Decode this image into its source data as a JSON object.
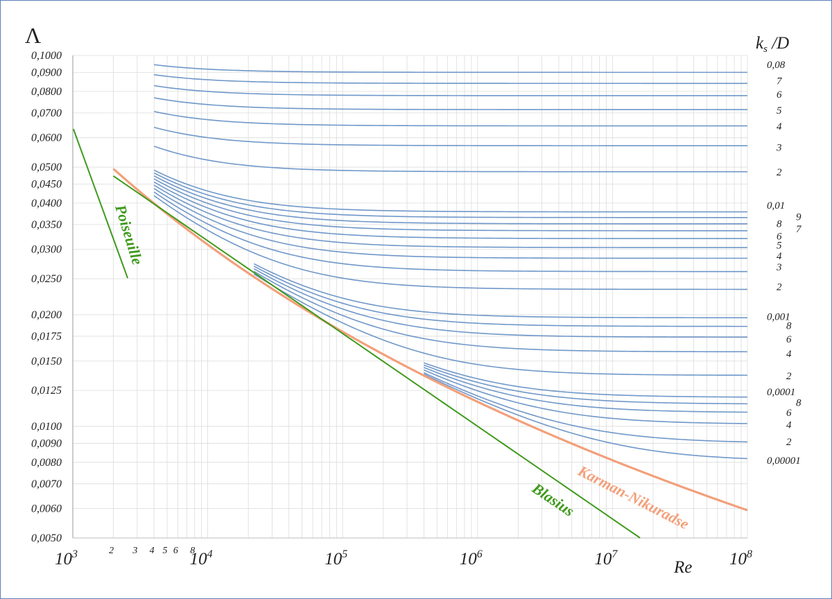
{
  "chart_data": {
    "type": "line",
    "x_scale": "log",
    "y_scale": "log",
    "xlim": [
      1000,
      100000000
    ],
    "ylim": [
      0.005,
      0.1
    ],
    "grid": true,
    "y_axis_title": "Λ",
    "x_axis_title": "Re",
    "ks_title_main": "k",
    "ks_title_sub": "s",
    "ks_title_rest": " /D",
    "y_ticks": [
      {
        "value": 0.1,
        "label": "0,1000"
      },
      {
        "value": 0.09,
        "label": "0,0900"
      },
      {
        "value": 0.08,
        "label": "0,0800"
      },
      {
        "value": 0.07,
        "label": "0,0700"
      },
      {
        "value": 0.06,
        "label": "0,0600"
      },
      {
        "value": 0.05,
        "label": "0,0500"
      },
      {
        "value": 0.045,
        "label": "0,0450"
      },
      {
        "value": 0.04,
        "label": "0,0400"
      },
      {
        "value": 0.035,
        "label": "0,0350"
      },
      {
        "value": 0.03,
        "label": "0,0300"
      },
      {
        "value": 0.025,
        "label": "0,0250"
      },
      {
        "value": 0.02,
        "label": "0,0200"
      },
      {
        "value": 0.0175,
        "label": "0,0175"
      },
      {
        "value": 0.015,
        "label": "0,0150"
      },
      {
        "value": 0.0125,
        "label": "0,0125"
      },
      {
        "value": 0.01,
        "label": "0,0100"
      },
      {
        "value": 0.009,
        "label": "0,0090"
      },
      {
        "value": 0.008,
        "label": "0,0080"
      },
      {
        "value": 0.007,
        "label": "0,0070"
      },
      {
        "value": 0.006,
        "label": "0,0060"
      },
      {
        "value": 0.005,
        "label": "0,0050"
      }
    ],
    "x_decades": [
      {
        "value": 1000,
        "base": "10",
        "exp": "3"
      },
      {
        "value": 10000,
        "base": "10",
        "exp": "4"
      },
      {
        "value": 100000,
        "base": "10",
        "exp": "5"
      },
      {
        "value": 1000000,
        "base": "10",
        "exp": "6"
      },
      {
        "value": 10000000,
        "base": "10",
        "exp": "7"
      },
      {
        "value": 100000000,
        "base": "10",
        "exp": "8"
      }
    ],
    "x_minor_labels": [
      {
        "value": 2000,
        "label": "2"
      },
      {
        "value": 3000,
        "label": "3"
      },
      {
        "value": 4000,
        "label": "4"
      },
      {
        "value": 5000,
        "label": "5"
      },
      {
        "value": 6000,
        "label": "6"
      },
      {
        "value": 8000,
        "label": "8"
      }
    ],
    "ks_labels": [
      {
        "label": "0,08",
        "y": 0.0945,
        "dx": 0
      },
      {
        "label": "7",
        "y": 0.0855,
        "dx": 1
      },
      {
        "label": "6",
        "y": 0.0785,
        "dx": 1
      },
      {
        "label": "5",
        "y": 0.0712,
        "dx": 1
      },
      {
        "label": "4",
        "y": 0.0645,
        "dx": 1
      },
      {
        "label": "3",
        "y": 0.0565,
        "dx": 1
      },
      {
        "label": "2",
        "y": 0.0485,
        "dx": 1
      },
      {
        "label": "0,01",
        "y": 0.0395,
        "dx": 0
      },
      {
        "label": "9",
        "y": 0.0368,
        "dx": 3
      },
      {
        "label": "8",
        "y": 0.0352,
        "dx": 1
      },
      {
        "label": "7",
        "y": 0.0341,
        "dx": 3
      },
      {
        "label": "6",
        "y": 0.0326,
        "dx": 1
      },
      {
        "label": "5",
        "y": 0.0308,
        "dx": 1
      },
      {
        "label": "4",
        "y": 0.0288,
        "dx": 1
      },
      {
        "label": "3",
        "y": 0.0269,
        "dx": 1
      },
      {
        "label": "2",
        "y": 0.0238,
        "dx": 1
      },
      {
        "label": "0,001",
        "y": 0.0198,
        "dx": 0
      },
      {
        "label": "8",
        "y": 0.0187,
        "dx": 2
      },
      {
        "label": "6",
        "y": 0.0172,
        "dx": 2
      },
      {
        "label": "4",
        "y": 0.0157,
        "dx": 2
      },
      {
        "label": "2",
        "y": 0.0137,
        "dx": 2
      },
      {
        "label": "0,0001",
        "y": 0.0124,
        "dx": 0
      },
      {
        "label": "8",
        "y": 0.0116,
        "dx": 3
      },
      {
        "label": "6",
        "y": 0.0109,
        "dx": 2
      },
      {
        "label": "4",
        "y": 0.0101,
        "dx": 2
      },
      {
        "label": "2",
        "y": 0.0091,
        "dx": 2
      },
      {
        "label": "0,00001",
        "y": 0.0081,
        "dx": 0
      }
    ],
    "roughness_values": [
      0.08,
      0.07,
      0.06,
      0.05,
      0.04,
      0.03,
      0.02,
      0.01,
      0.009,
      0.008,
      0.007,
      0.006,
      0.005,
      0.004,
      0.003,
      0.002,
      0.001,
      0.0008,
      0.0006,
      0.0004,
      0.0002,
      0.0001,
      8e-05,
      6e-05,
      4e-05,
      2e-05,
      1e-05
    ],
    "series": [
      {
        "name": "Poiseuille",
        "relation": "Λ = 64/Re",
        "x_range": [
          1100,
          2550
        ]
      },
      {
        "name": "Blasius",
        "relation": "Λ = 0.3164·Re^-0.25",
        "x_range": [
          2000,
          16000000
        ]
      },
      {
        "name": "Karman-Nikuradse",
        "relation": "1/√Λ = 2·lg(Re·√Λ) − 0.8",
        "x_range": [
          2000,
          100000000
        ]
      }
    ],
    "colors": {
      "roughness": "#6f97c9",
      "karman": "#f2a07b",
      "green": "#3f9a1c",
      "grid": "#dcdcdc",
      "frame": "#5b7fb5"
    }
  }
}
